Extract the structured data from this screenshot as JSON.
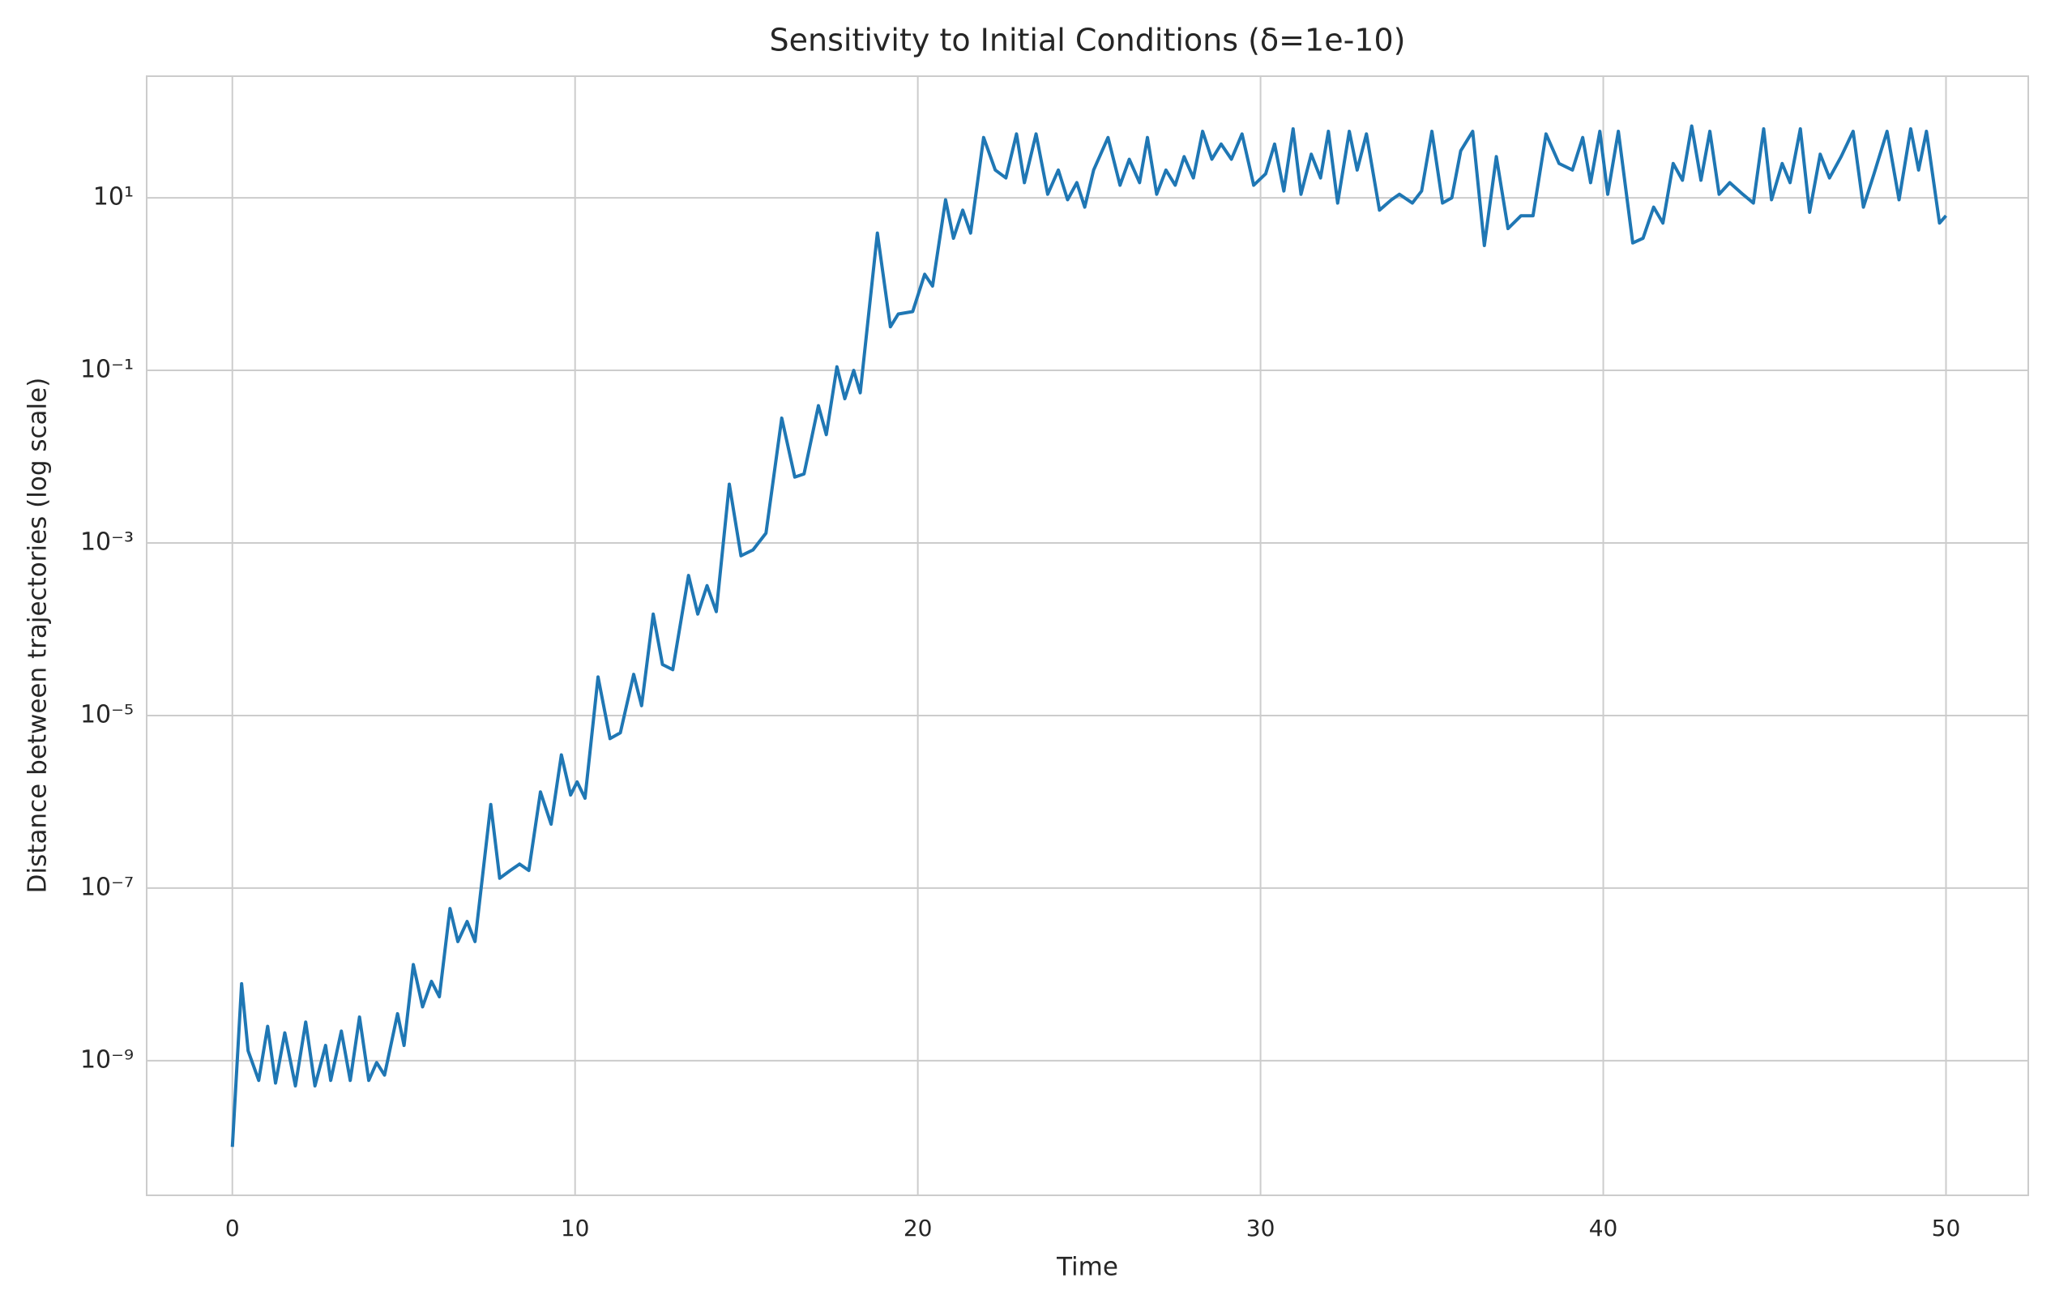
{
  "chart_data": {
    "type": "line",
    "title": "Sensitivity to Initial Conditions (δ=1e-10)",
    "xlabel": "Time",
    "ylabel": "Distance between trajectories (log scale)",
    "yscale": "log",
    "grid": true,
    "color": "#1f77b4",
    "xlim": [
      -2.5,
      52.4
    ],
    "ylim": [
      2.75e-11,
      257
    ],
    "xticks": [
      0,
      10,
      20,
      30,
      40,
      50
    ],
    "yticks": [
      {
        "value": 1e-09,
        "label": "10⁻⁹"
      },
      {
        "value": 1e-07,
        "label": "10⁻⁷"
      },
      {
        "value": 1e-05,
        "label": "10⁻⁵"
      },
      {
        "value": 0.001,
        "label": "10⁻³"
      },
      {
        "value": 0.1,
        "label": "10⁻¹"
      },
      {
        "value": 10,
        "label": "10¹"
      }
    ],
    "x": [
      0,
      0.27,
      0.46,
      0.77,
      1.03,
      1.26,
      1.53,
      1.84,
      2.14,
      2.41,
      2.72,
      2.87,
      3.18,
      3.44,
      3.71,
      3.98,
      4.21,
      4.44,
      4.82,
      5.01,
      5.28,
      5.55,
      5.81,
      6.04,
      6.35,
      6.58,
      6.85,
      7.08,
      7.54,
      7.8,
      8.11,
      8.38,
      8.65,
      8.99,
      9.3,
      9.6,
      9.87,
      10.06,
      10.29,
      10.67,
      11.02,
      11.32,
      11.71,
      11.94,
      12.28,
      12.55,
      12.85,
      13.31,
      13.58,
      13.85,
      14.12,
      14.5,
      14.84,
      15.19,
      15.57,
      16.03,
      16.41,
      16.68,
      17.1,
      17.33,
      17.64,
      17.87,
      18.13,
      18.32,
      18.82,
      19.2,
      19.43,
      19.85,
      20.2,
      20.43,
      20.81,
      21.04,
      21.31,
      21.54,
      21.92,
      22.26,
      22.57,
      22.88,
      23.11,
      23.45,
      23.79,
      24.1,
      24.37,
      24.64,
      24.87,
      25.13,
      25.55,
      25.9,
      26.17,
      26.47,
      26.7,
      26.97,
      27.24,
      27.51,
      27.77,
      28.04,
      28.31,
      28.58,
      28.85,
      29.15,
      29.46,
      29.8,
      30.15,
      30.41,
      30.68,
      30.95,
      31.18,
      31.48,
      31.75,
      31.98,
      32.25,
      32.59,
      32.82,
      33.09,
      33.47,
      33.82,
      34.05,
      34.43,
      34.7,
      35.0,
      35.31,
      35.58,
      35.84,
      36.19,
      36.53,
      36.88,
      37.22,
      37.6,
      37.95,
      38.33,
      38.71,
      39.1,
      39.4,
      39.63,
      39.9,
      40.13,
      40.44,
      40.86,
      41.16,
      41.47,
      41.74,
      42.04,
      42.31,
      42.58,
      42.85,
      43.11,
      43.38,
      43.69,
      44.07,
      44.38,
      44.68,
      44.91,
      45.22,
      45.45,
      45.75,
      46.02,
      46.33,
      46.6,
      46.94,
      47.29,
      47.59,
      47.9,
      48.28,
      48.63,
      48.97,
      49.2,
      49.43,
      49.81,
      50
    ],
    "values": [
      1e-10,
      7.8e-09,
      1.3e-09,
      5.9e-10,
      2.5e-09,
      5.5e-10,
      2.1e-09,
      5.1e-10,
      2.8e-09,
      5.1e-10,
      1.5e-09,
      5.9e-10,
      2.2e-09,
      5.9e-10,
      3.2e-09,
      5.9e-10,
      9.5e-10,
      6.8e-10,
      3.5e-09,
      1.5e-09,
      1.3e-08,
      4.2e-09,
      8.3e-09,
      5.5e-09,
      5.8e-08,
      2.4e-08,
      4.1e-08,
      2.4e-08,
      9.3e-07,
      1.3e-07,
      1.6e-07,
      1.9e-07,
      1.6e-07,
      1.3e-06,
      5.5e-07,
      3.5e-06,
      1.2e-06,
      1.7e-06,
      1.1e-06,
      2.8e-05,
      5.4e-06,
      6.3e-06,
      3e-05,
      1.3e-05,
      0.00015,
      3.9e-05,
      3.4e-05,
      0.00042,
      0.00015,
      0.00032,
      0.00016,
      0.0048,
      0.00071,
      0.00083,
      0.0013,
      0.028,
      0.0058,
      0.0063,
      0.039,
      0.018,
      0.11,
      0.047,
      0.1,
      0.055,
      3.9,
      0.32,
      0.45,
      0.48,
      1.3,
      0.95,
      9.5,
      3.4,
      7.2,
      3.9,
      50,
      21,
      17,
      55,
      15,
      55,
      11,
      21,
      9.5,
      15,
      7.8,
      21,
      50,
      14,
      28,
      15,
      50,
      11,
      21,
      14,
      30,
      17,
      59,
      28,
      42,
      28,
      55,
      14,
      19,
      42,
      12,
      63,
      11,
      32,
      17,
      59,
      8.7,
      59,
      21,
      55,
      7.2,
      9.5,
      11,
      8.7,
      12,
      59,
      8.7,
      10,
      35,
      59,
      2.8,
      30,
      4.4,
      6.2,
      6.2,
      55,
      25,
      21,
      50,
      15,
      59,
      11,
      59,
      3,
      3.4,
      7.8,
      5.1,
      25,
      16,
      68,
      16,
      59,
      11,
      15,
      11,
      8.7,
      63,
      9.5,
      25,
      15,
      63,
      6.8,
      32,
      17,
      30,
      59,
      7.8,
      19,
      59,
      9.5,
      63,
      21,
      59,
      5.1,
      6.2
    ]
  }
}
